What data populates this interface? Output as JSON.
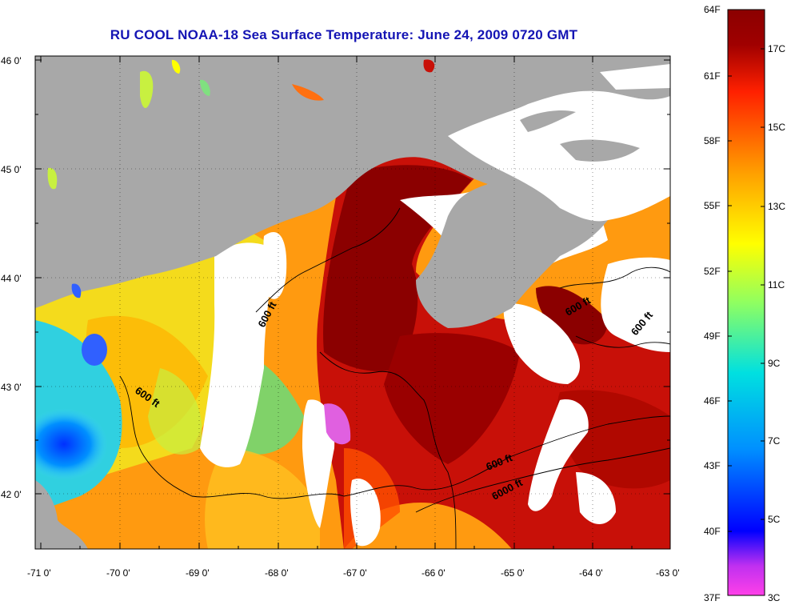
{
  "title": "RU COOL  NOAA-18  Sea Surface Temperature:  June 24, 2009 0720 GMT",
  "lat_labels": [
    "46 0'",
    "45 0'",
    "44 0'",
    "43 0'",
    "42 0'"
  ],
  "lon_labels": [
    "-71 0'",
    "-70 0'",
    "-69 0'",
    "-68 0'",
    "-67 0'",
    "-66 0'",
    "-65 0'",
    "-64 0'",
    "-63 0'"
  ],
  "colorbar": {
    "fahrenheit": [
      "64F",
      "61F",
      "58F",
      "55F",
      "52F",
      "49F",
      "46F",
      "43F",
      "40F",
      "37F"
    ],
    "celsius": [
      "17C",
      "15C",
      "13C",
      "11C",
      "9C",
      "7C",
      "5C",
      "3C"
    ],
    "stops": [
      "#ff40e8",
      "#a020f0",
      "#0000ff",
      "#00a0ff",
      "#00e8e8",
      "#80ff80",
      "#ffff00",
      "#ffa000",
      "#ff2000",
      "#8b0000"
    ]
  },
  "contour_labels": [
    "600 ft",
    "600 ft",
    "600 ft",
    "600 ft",
    "600 ft",
    "6000 ft"
  ],
  "colors": {
    "land": "#a8a8a8",
    "cloud": "#ffffff",
    "title": "#1414b4"
  }
}
